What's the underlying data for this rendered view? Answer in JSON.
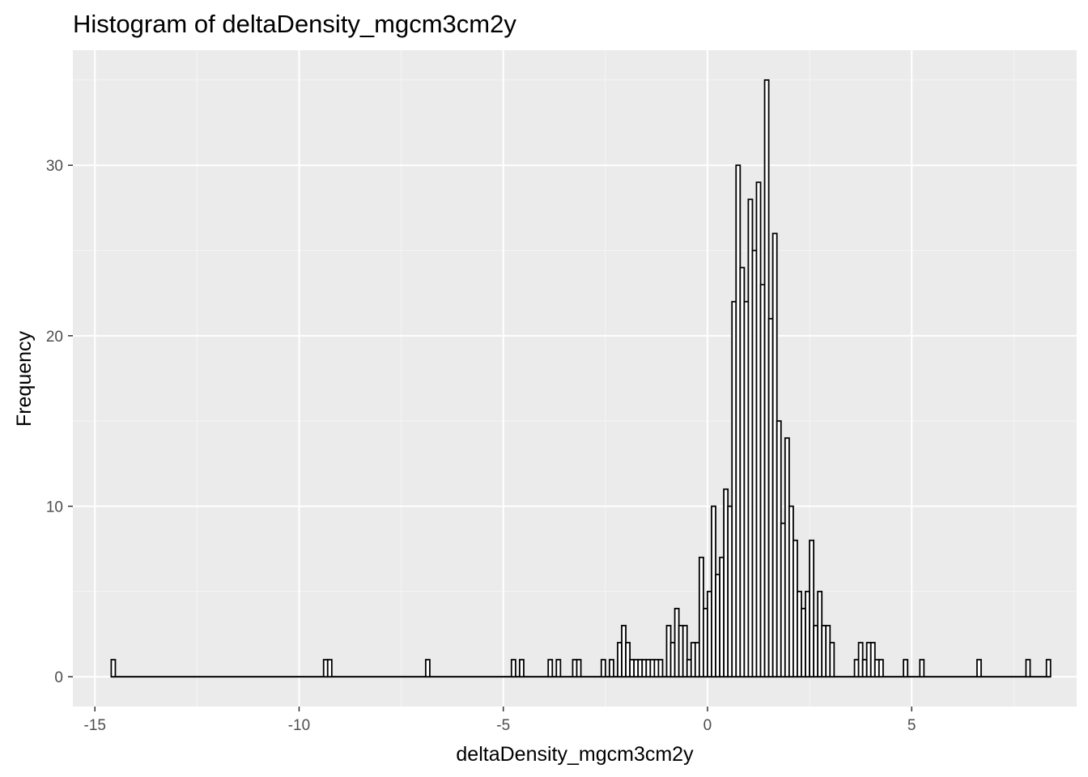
{
  "chart_data": {
    "type": "bar",
    "title": "Histogram of deltaDensity_mgcm3cm2y",
    "xlabel": "deltaDensity_mgcm3cm2y",
    "ylabel": "Frequency",
    "xlim": [
      -15.54,
      9.04
    ],
    "ylim": [
      -1.75,
      36.75
    ],
    "x_ticks": [
      -15,
      -10,
      -5,
      0,
      5
    ],
    "x_tick_labels": [
      "-15",
      "-10",
      "-5",
      "0",
      "5"
    ],
    "y_ticks": [
      0,
      10,
      20,
      30
    ],
    "y_tick_labels": [
      "0",
      "10",
      "20",
      "30"
    ],
    "grid": true,
    "legend": "none",
    "bin_start": -14.6,
    "bin_width": 0.1,
    "bins": [
      {
        "x": -14.55,
        "count": 1
      },
      {
        "x": -9.35,
        "count": 1
      },
      {
        "x": -9.25,
        "count": 1
      },
      {
        "x": -6.85,
        "count": 1
      },
      {
        "x": -4.75,
        "count": 1
      },
      {
        "x": -4.55,
        "count": 1
      },
      {
        "x": -3.85,
        "count": 1
      },
      {
        "x": -3.65,
        "count": 1
      },
      {
        "x": -3.25,
        "count": 1
      },
      {
        "x": -3.15,
        "count": 1
      },
      {
        "x": -2.55,
        "count": 1
      },
      {
        "x": -2.35,
        "count": 1
      },
      {
        "x": -2.15,
        "count": 2
      },
      {
        "x": -2.05,
        "count": 3
      },
      {
        "x": -1.95,
        "count": 2
      },
      {
        "x": -1.85,
        "count": 1
      },
      {
        "x": -1.75,
        "count": 1
      },
      {
        "x": -1.65,
        "count": 1
      },
      {
        "x": -1.55,
        "count": 1
      },
      {
        "x": -1.45,
        "count": 1
      },
      {
        "x": -1.35,
        "count": 1
      },
      {
        "x": -1.25,
        "count": 1
      },
      {
        "x": -1.15,
        "count": 1
      },
      {
        "x": -0.95,
        "count": 3
      },
      {
        "x": -0.85,
        "count": 2
      },
      {
        "x": -0.75,
        "count": 4
      },
      {
        "x": -0.65,
        "count": 3
      },
      {
        "x": -0.55,
        "count": 3
      },
      {
        "x": -0.45,
        "count": 1
      },
      {
        "x": -0.35,
        "count": 2
      },
      {
        "x": -0.25,
        "count": 2
      },
      {
        "x": -0.15,
        "count": 7
      },
      {
        "x": -0.05,
        "count": 4
      },
      {
        "x": 0.05,
        "count": 5
      },
      {
        "x": 0.15,
        "count": 10
      },
      {
        "x": 0.25,
        "count": 6
      },
      {
        "x": 0.35,
        "count": 7
      },
      {
        "x": 0.45,
        "count": 11
      },
      {
        "x": 0.55,
        "count": 10
      },
      {
        "x": 0.65,
        "count": 22
      },
      {
        "x": 0.75,
        "count": 30
      },
      {
        "x": 0.85,
        "count": 24
      },
      {
        "x": 0.95,
        "count": 22
      },
      {
        "x": 1.05,
        "count": 28
      },
      {
        "x": 1.15,
        "count": 25
      },
      {
        "x": 1.25,
        "count": 29
      },
      {
        "x": 1.35,
        "count": 23
      },
      {
        "x": 1.45,
        "count": 35
      },
      {
        "x": 1.55,
        "count": 21
      },
      {
        "x": 1.65,
        "count": 26
      },
      {
        "x": 1.75,
        "count": 15
      },
      {
        "x": 1.85,
        "count": 9
      },
      {
        "x": 1.95,
        "count": 14
      },
      {
        "x": 2.05,
        "count": 10
      },
      {
        "x": 2.15,
        "count": 8
      },
      {
        "x": 2.25,
        "count": 5
      },
      {
        "x": 2.35,
        "count": 4
      },
      {
        "x": 2.45,
        "count": 5
      },
      {
        "x": 2.55,
        "count": 8
      },
      {
        "x": 2.65,
        "count": 3
      },
      {
        "x": 2.75,
        "count": 5
      },
      {
        "x": 2.85,
        "count": 3
      },
      {
        "x": 2.95,
        "count": 3
      },
      {
        "x": 3.05,
        "count": 2
      },
      {
        "x": 3.65,
        "count": 1
      },
      {
        "x": 3.75,
        "count": 2
      },
      {
        "x": 3.85,
        "count": 1
      },
      {
        "x": 3.95,
        "count": 2
      },
      {
        "x": 4.05,
        "count": 2
      },
      {
        "x": 4.15,
        "count": 1
      },
      {
        "x": 4.25,
        "count": 1
      },
      {
        "x": 4.85,
        "count": 1
      },
      {
        "x": 5.25,
        "count": 1
      },
      {
        "x": 6.65,
        "count": 1
      },
      {
        "x": 7.85,
        "count": 1
      },
      {
        "x": 8.35,
        "count": 1
      }
    ]
  },
  "colors": {
    "panel_background": "#ebebeb",
    "grid_major": "#ffffff",
    "grid_minor": "#f5f5f5",
    "bar_fill": "#ffffff",
    "bar_outline": "#000000",
    "tick_text": "#4d4d4d",
    "tick_mark": "#333333"
  }
}
